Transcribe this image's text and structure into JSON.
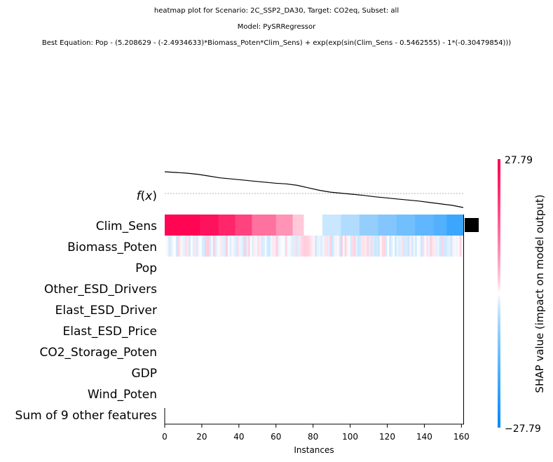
{
  "titles": [
    "heatmap plot for Scenario: 2C_SSP2_DA30, Target: CO2eq, Subset: all",
    "Model: PySRRegressor",
    "Best Equation: Pop - (5.208629 - (-2.4934633)*Biomass_Poten*Clim_Sens) + exp(exp(sin(Clim_Sens - 0.5462555) - 1*(-0.30479854)))"
  ],
  "chart_data": {
    "type": "heatmap",
    "n_instances": 161,
    "xlabel": "Instances",
    "xticks": [
      0,
      20,
      40,
      60,
      80,
      100,
      120,
      140,
      160
    ],
    "xlim": [
      0,
      161
    ],
    "fx_label": "f(x)",
    "features": [
      "Clim_Sens",
      "Biomass_Poten",
      "Pop",
      "Other_ESD_Drivers",
      "Elast_ESD_Driver",
      "Elast_ESD_Price",
      "CO2_Storage_Poten",
      "GDP",
      "Wind_Poten",
      "Sum of 9 other features"
    ],
    "clim_sens_segments": [
      {
        "start": 0,
        "end": 19,
        "value": 27.0
      },
      {
        "start": 19,
        "end": 29,
        "value": 25.0
      },
      {
        "start": 29,
        "end": 38,
        "value": 22.0
      },
      {
        "start": 38,
        "end": 47,
        "value": 18.0
      },
      {
        "start": 47,
        "end": 60,
        "value": 12.0
      },
      {
        "start": 60,
        "end": 69,
        "value": 8.0
      },
      {
        "start": 69,
        "end": 75,
        "value": 3.0
      },
      {
        "start": 75,
        "end": 85,
        "value": 0.0
      },
      {
        "start": 85,
        "end": 95,
        "value": -3.0
      },
      {
        "start": 95,
        "end": 105,
        "value": -5.0
      },
      {
        "start": 105,
        "end": 115,
        "value": -8.0
      },
      {
        "start": 115,
        "end": 125,
        "value": -10.0
      },
      {
        "start": 125,
        "end": 135,
        "value": -12.0
      },
      {
        "start": 135,
        "end": 145,
        "value": -14.0
      },
      {
        "start": 145,
        "end": 152,
        "value": -16.0
      },
      {
        "start": 152,
        "end": 161,
        "value": -19.0
      }
    ],
    "biomass_noise_amplitude": 3.0,
    "fx_values": [
      1.0,
      0.98,
      0.96,
      0.93,
      0.88,
      0.83,
      0.8,
      0.77,
      0.74,
      0.71,
      0.68,
      0.66,
      0.62,
      0.55,
      0.48,
      0.43,
      0.4,
      0.37,
      0.34,
      0.3,
      0.27,
      0.24,
      0.21,
      0.18,
      0.14,
      0.1,
      0.06,
      0.0
    ],
    "importance_bar_feature": "Clim_Sens",
    "colorbar": {
      "label": "SHAP value (impact on model output)",
      "max_label": "27.79",
      "min_label": "−27.79",
      "max": 27.79,
      "min": -27.79,
      "colors": {
        "high": "#ff0051",
        "mid": "#ffffff",
        "low": "#008bfb"
      }
    }
  }
}
